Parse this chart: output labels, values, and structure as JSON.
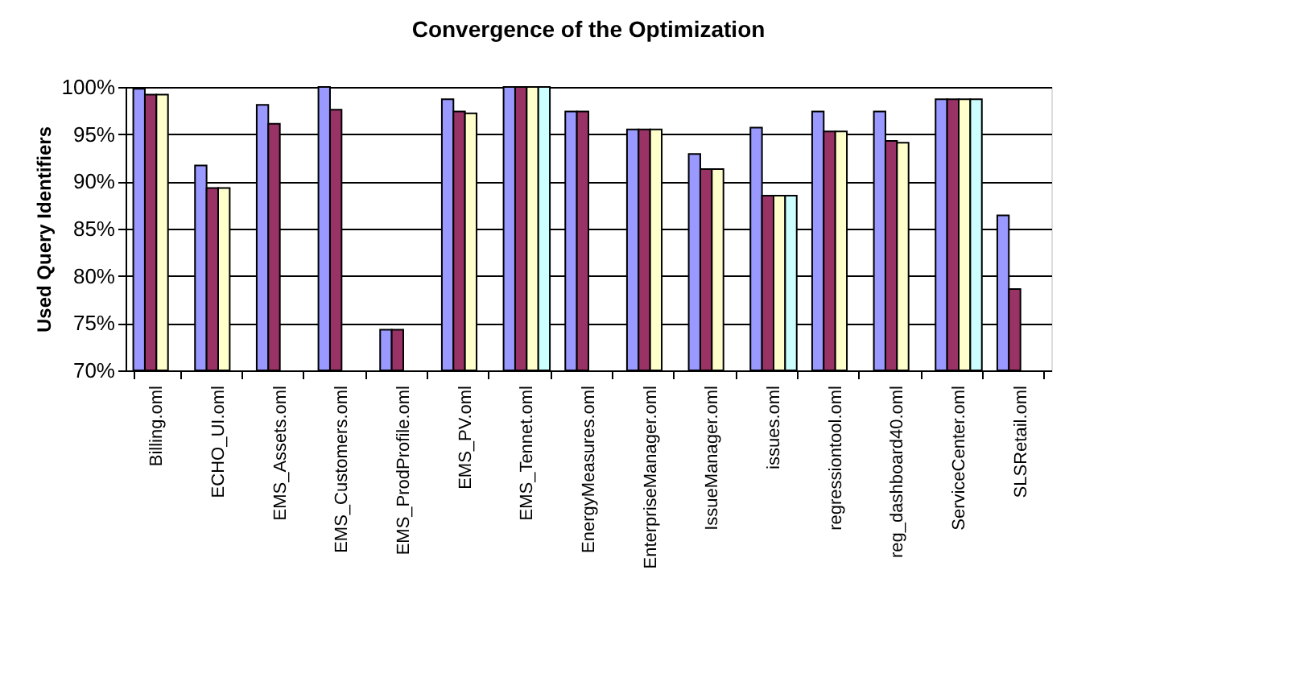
{
  "chart_data": {
    "type": "bar",
    "title": "Convergence of the Optimization",
    "ylabel": "Used Query Identifiers",
    "categories": [
      "Billing.oml",
      "ECHO_UI.oml",
      "EMS_Assets.oml",
      "EMS_Customers.oml",
      "EMS_ProdProfile.oml",
      "EMS_PV.oml",
      "EMS_Tennet.oml",
      "EnergyMeasures.oml",
      "EnterpriseManager.oml",
      "IssueManager.oml",
      "issues.oml",
      "regressiontool.oml",
      "reg_dashboard40.oml",
      "ServiceCenter.oml",
      "SLSRetail.oml"
    ],
    "series": [
      {
        "color": "#9999ff",
        "values": [
          99.8,
          91.7,
          98.1,
          100,
          74.3,
          98.7,
          100,
          97.4,
          95.5,
          92.9,
          95.7,
          97.4,
          97.4,
          98.7,
          86.4
        ]
      },
      {
        "color": "#993366",
        "values": [
          99.2,
          89.3,
          96.1,
          97.6,
          74.3,
          97.4,
          100,
          97.4,
          95.5,
          91.3,
          88.5,
          95.3,
          94.3,
          98.7,
          78.6
        ]
      },
      {
        "color": "#ffffcc",
        "values": [
          99.2,
          89.3,
          null,
          null,
          null,
          97.2,
          100,
          null,
          95.5,
          91.3,
          88.5,
          95.3,
          94.1,
          98.7,
          null
        ]
      },
      {
        "color": "#ccffff",
        "values": [
          null,
          null,
          null,
          null,
          null,
          null,
          100,
          null,
          null,
          null,
          88.5,
          null,
          null,
          98.7,
          null
        ]
      }
    ],
    "ylim": [
      70,
      100
    ],
    "yticks": [
      {
        "value": 70,
        "label": "70%"
      },
      {
        "value": 75,
        "label": "75%"
      },
      {
        "value": 80,
        "label": "80%"
      },
      {
        "value": 85,
        "label": "85%"
      },
      {
        "value": 90,
        "label": "90%"
      },
      {
        "value": 95,
        "label": "95%"
      },
      {
        "value": 100,
        "label": "100%"
      }
    ],
    "grid": "y",
    "legend": false
  }
}
